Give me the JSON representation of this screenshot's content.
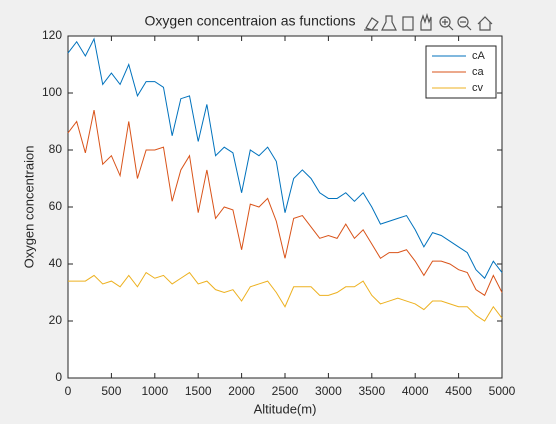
{
  "chart_data": {
    "type": "line",
    "title": "Oxygen concentraion as functions",
    "x_label": "Altitude(m)",
    "y_label": "Oxygen concentraion",
    "x": [
      0,
      100,
      200,
      300,
      400,
      500,
      600,
      700,
      800,
      900,
      1000,
      1100,
      1200,
      1300,
      1400,
      1500,
      1600,
      1700,
      1800,
      1900,
      2000,
      2100,
      2200,
      2300,
      2400,
      2500,
      2600,
      2700,
      2800,
      2900,
      3000,
      3100,
      3200,
      3300,
      3400,
      3500,
      3600,
      3700,
      3800,
      3900,
      4000,
      4100,
      4200,
      4300,
      4400,
      4500,
      4600,
      4700,
      4800,
      4900,
      5000
    ],
    "series": [
      {
        "name": "cA",
        "color": "#0072bd",
        "values": [
          114,
          118,
          113,
          119,
          103,
          107,
          103,
          110,
          99,
          104,
          104,
          102,
          85,
          98,
          99,
          83,
          96,
          78,
          81,
          79,
          65,
          80,
          78,
          81,
          76,
          58,
          70,
          73,
          70,
          65,
          63,
          63,
          65,
          62,
          65,
          60,
          54,
          55,
          56,
          57,
          52,
          46,
          51,
          50,
          48,
          46,
          44,
          38,
          35,
          41,
          37
        ]
      },
      {
        "name": "ca",
        "color": "#d95319",
        "values": [
          86,
          90,
          79,
          94,
          75,
          78,
          71,
          90,
          70,
          80,
          80,
          81,
          62,
          73,
          78,
          58,
          73,
          56,
          60,
          59,
          45,
          61,
          60,
          63,
          55,
          42,
          56,
          57,
          53,
          49,
          50,
          49,
          54,
          49,
          52,
          47,
          42,
          44,
          44,
          45,
          41,
          36,
          41,
          41,
          40,
          38,
          37,
          31,
          29,
          36,
          30
        ]
      },
      {
        "name": "cv",
        "color": "#edb120",
        "values": [
          34,
          34,
          34,
          36,
          33,
          34,
          32,
          36,
          32,
          37,
          35,
          36,
          33,
          35,
          37,
          33,
          34,
          31,
          30,
          31,
          27,
          32,
          33,
          34,
          30,
          25,
          32,
          32,
          32,
          29,
          29,
          30,
          32,
          32,
          34,
          29,
          26,
          27,
          28,
          27,
          26,
          24,
          27,
          27,
          26,
          25,
          25,
          22,
          20,
          25,
          21
        ]
      }
    ],
    "xlim": [
      0,
      5000
    ],
    "xticks": [
      0,
      500,
      1000,
      1500,
      2000,
      2500,
      3000,
      3500,
      4000,
      4500,
      5000
    ],
    "ylim": [
      0,
      120
    ],
    "yticks": [
      0,
      20,
      40,
      60,
      80,
      100,
      120
    ],
    "grid": false,
    "legend": "northeast"
  }
}
